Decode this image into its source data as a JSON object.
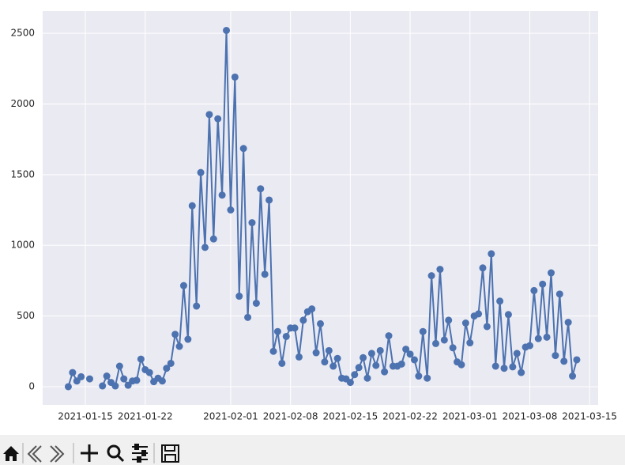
{
  "chart_data": {
    "type": "line",
    "color": "#4c72b0",
    "grid": true,
    "x": [
      "2021-01-13 00:00",
      "2021-01-13 12:00",
      "2021-01-14 00:00",
      "2021-01-14 12:00",
      "2021-01-15 00:00",
      "2021-01-15 12:00",
      "2021-01-16 00:00",
      "2021-01-16 12:00",
      "2021-01-17 00:00",
      "2021-01-17 12:00",
      "2021-01-18 00:00",
      "2021-01-18 12:00",
      "2021-01-19 00:00",
      "2021-01-19 12:00",
      "2021-01-20 00:00",
      "2021-01-20 12:00",
      "2021-01-21 00:00",
      "2021-01-21 12:00",
      "2021-01-22 00:00",
      "2021-01-22 12:00",
      "2021-01-23 00:00",
      "2021-01-23 12:00",
      "2021-01-24 00:00",
      "2021-01-24 12:00",
      "2021-01-25 00:00",
      "2021-01-25 12:00",
      "2021-01-26 00:00",
      "2021-01-26 12:00",
      "2021-01-27 00:00",
      "2021-01-27 12:00",
      "2021-01-28 00:00",
      "2021-01-28 12:00",
      "2021-01-29 00:00",
      "2021-01-29 12:00",
      "2021-01-30 00:00",
      "2021-01-30 12:00",
      "2021-01-31 00:00",
      "2021-01-31 12:00",
      "2021-02-01 00:00",
      "2021-02-01 12:00",
      "2021-02-02 00:00",
      "2021-02-02 12:00",
      "2021-02-03 00:00",
      "2021-02-03 12:00",
      "2021-02-04 00:00",
      "2021-02-04 12:00",
      "2021-02-05 00:00",
      "2021-02-05 12:00",
      "2021-02-06 00:00",
      "2021-02-06 12:00",
      "2021-02-07 00:00",
      "2021-02-07 12:00",
      "2021-02-08 00:00",
      "2021-02-08 12:00",
      "2021-02-09 00:00",
      "2021-02-09 12:00",
      "2021-02-10 00:00",
      "2021-02-10 12:00",
      "2021-02-11 00:00",
      "2021-02-11 12:00",
      "2021-02-12 00:00",
      "2021-02-12 12:00",
      "2021-02-13 00:00",
      "2021-02-13 12:00",
      "2021-02-14 00:00",
      "2021-02-14 12:00",
      "2021-02-15 00:00",
      "2021-02-15 12:00",
      "2021-02-16 00:00",
      "2021-02-16 12:00",
      "2021-02-17 00:00",
      "2021-02-17 12:00",
      "2021-02-18 00:00",
      "2021-02-18 12:00",
      "2021-02-19 00:00",
      "2021-02-19 12:00",
      "2021-02-20 00:00",
      "2021-02-20 12:00",
      "2021-02-21 00:00",
      "2021-02-21 12:00",
      "2021-02-22 00:00",
      "2021-02-22 12:00",
      "2021-02-23 00:00",
      "2021-02-23 12:00",
      "2021-02-24 00:00",
      "2021-02-24 12:00",
      "2021-02-25 00:00",
      "2021-02-25 12:00",
      "2021-02-26 00:00",
      "2021-02-26 12:00",
      "2021-02-27 00:00",
      "2021-02-27 12:00",
      "2021-02-28 00:00",
      "2021-02-28 12:00",
      "2021-03-01 00:00",
      "2021-03-01 12:00",
      "2021-03-02 00:00",
      "2021-03-02 12:00",
      "2021-03-03 00:00",
      "2021-03-03 12:00",
      "2021-03-04 00:00",
      "2021-03-04 12:00",
      "2021-03-05 00:00",
      "2021-03-05 12:00",
      "2021-03-06 00:00",
      "2021-03-06 12:00",
      "2021-03-07 00:00",
      "2021-03-07 12:00",
      "2021-03-08 00:00",
      "2021-03-08 12:00",
      "2021-03-09 00:00",
      "2021-03-09 12:00",
      "2021-03-10 00:00",
      "2021-03-10 12:00",
      "2021-03-11 00:00",
      "2021-03-11 12:00",
      "2021-03-12 00:00",
      "2021-03-12 12:00",
      "2021-03-13 00:00",
      "2021-03-13 12:00"
    ],
    "values": [
      0,
      100,
      40,
      70,
      null,
      55,
      null,
      null,
      5,
      75,
      30,
      5,
      145,
      55,
      10,
      40,
      45,
      195,
      120,
      100,
      35,
      60,
      40,
      130,
      165,
      370,
      285,
      715,
      335,
      1280,
      570,
      1515,
      985,
      1925,
      1045,
      1895,
      1355,
      2520,
      1250,
      2190,
      640,
      1685,
      490,
      1160,
      590,
      1400,
      795,
      1320,
      250,
      390,
      165,
      355,
      415,
      415,
      210,
      470,
      530,
      550,
      240,
      445,
      175,
      255,
      145,
      200,
      60,
      55,
      30,
      85,
      135,
      205,
      60,
      235,
      150,
      255,
      105,
      360,
      145,
      145,
      160,
      265,
      230,
      190,
      75,
      390,
      60,
      785,
      305,
      830,
      330,
      470,
      275,
      175,
      155,
      450,
      310,
      500,
      515,
      840,
      425,
      940,
      145,
      605,
      130,
      510,
      140,
      235,
      100,
      280,
      290,
      680,
      340,
      725,
      350,
      805,
      220,
      655,
      180,
      455,
      75,
      190
    ],
    "xlim": [
      "2021-01-10",
      "2021-03-16"
    ],
    "xticks": [
      "2021-01-15",
      "2021-01-22",
      "2021-02-01",
      "2021-02-08",
      "2021-02-15",
      "2021-02-22",
      "2021-03-01",
      "2021-03-08",
      "2021-03-15"
    ],
    "ylim": [
      -129,
      2657
    ],
    "yticks": [
      0,
      500,
      1000,
      1500,
      2000,
      2500
    ]
  }
}
